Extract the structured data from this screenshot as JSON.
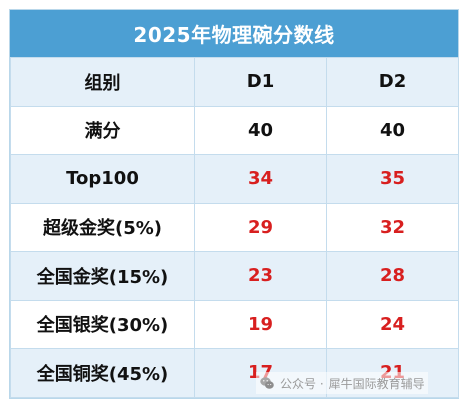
{
  "title": "2025年物理碗分数线",
  "header": {
    "group": "组别",
    "d1": "D1",
    "d2": "D2"
  },
  "rows": [
    {
      "label": "满分",
      "d1": "40",
      "d2": "40",
      "highlight": false
    },
    {
      "label": "Top100",
      "d1": "34",
      "d2": "35",
      "highlight": true
    },
    {
      "label": "超级金奖(5%)",
      "d1": "29",
      "d2": "32",
      "highlight": true
    },
    {
      "label": "全国金奖(15%)",
      "d1": "23",
      "d2": "28",
      "highlight": true
    },
    {
      "label": "全国银奖(30%)",
      "d1": "19",
      "d2": "24",
      "highlight": true
    },
    {
      "label": "全国铜奖(45%)",
      "d1": "17",
      "d2": "21",
      "highlight": true
    }
  ],
  "watermark": {
    "prefix": "公众号 · ",
    "account": "犀牛国际教育辅导",
    "icon": "wechat-icon"
  },
  "colors": {
    "title_bg": "#4c9fd3",
    "alt_row_bg": "#e5f0f9",
    "highlight_value": "#d81f1f"
  }
}
